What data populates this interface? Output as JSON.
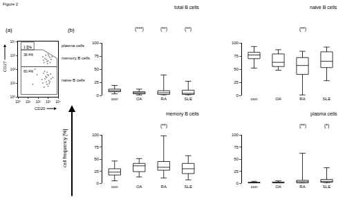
{
  "figure_title": "Figure 2",
  "chart_data": [
    {
      "type": "scatter",
      "panel": "(a)",
      "x_label": "CD20",
      "y_label": "CD27",
      "log": true,
      "grid": false,
      "xlim": [
        1,
        10000
      ],
      "ylim": [
        1,
        10000
      ],
      "xticks": [
        {
          "value": 1,
          "label": "10⁰"
        },
        {
          "value": 10,
          "label": "10¹"
        },
        {
          "value": 100,
          "label": "10²"
        },
        {
          "value": 1000,
          "label": "10³"
        },
        {
          "value": 10000,
          "label": "10⁴"
        }
      ],
      "yticks": [
        {
          "value": 1,
          "label": "10⁰"
        },
        {
          "value": 10,
          "label": "10¹"
        },
        {
          "value": 100,
          "label": "10²"
        },
        {
          "value": 1000,
          "label": "10³"
        },
        {
          "value": 10000,
          "label": "10⁴"
        }
      ],
      "color": "#8a8a8a",
      "marker": "circle",
      "x": [
        300,
        500,
        800,
        1200,
        600,
        400,
        900,
        1500,
        700,
        2000,
        1000,
        350,
        1100,
        250,
        1800,
        650,
        3000,
        450,
        1300,
        800,
        400,
        700,
        1000,
        300,
        1500,
        600,
        900,
        2000,
        500,
        1200,
        800,
        2500,
        350,
        1000,
        1600,
        10,
        20,
        8,
        30,
        50,
        80
      ],
      "y": [
        10,
        20,
        8,
        15,
        30,
        5,
        40,
        12,
        25,
        20,
        6,
        50,
        35,
        18,
        45,
        12,
        25,
        70,
        9,
        60,
        300,
        500,
        400,
        800,
        700,
        1000,
        250,
        500,
        600,
        900,
        350,
        800,
        450,
        1200,
        300,
        3000,
        3500,
        4500,
        8,
        100,
        40
      ],
      "gates": [
        {
          "name": "plasma cells",
          "percent": 1.2,
          "label": "1.2%",
          "x": [
            2,
            2,
            40,
            40,
            2
          ],
          "y": [
            2500,
            9000,
            9000,
            2500,
            2500
          ]
        },
        {
          "name": "memory B cells",
          "percent": 38.4,
          "label": "38.4%",
          "x": [
            2,
            2,
            300,
            8000,
            8000,
            2
          ],
          "y": [
            150,
            2500,
            2500,
            600,
            150,
            150
          ]
        },
        {
          "name": "naive B cells",
          "percent": 60.4,
          "label": "60.4%",
          "x": [
            2,
            2,
            8000,
            8000,
            2
          ],
          "y": [
            1.5,
            150,
            150,
            1.5,
            1.5
          ]
        }
      ]
    },
    {
      "type": "box",
      "panel": "(b)",
      "title": "total B cells",
      "y_label": "cell frequency [%]",
      "grid": false,
      "color": "#000000",
      "categories": [
        "con",
        "OA",
        "RA",
        "SLE"
      ],
      "min": [
        3,
        1,
        0,
        0
      ],
      "q1": [
        7,
        3,
        2,
        2
      ],
      "median": [
        9,
        5,
        5,
        4
      ],
      "q3": [
        12,
        7,
        9,
        10
      ],
      "max": [
        19,
        12,
        39,
        27
      ],
      "significance": [
        null,
        "(***)",
        "(**)",
        "(**)"
      ],
      "ylim": [
        0,
        100
      ],
      "yticks": [
        0,
        25,
        50,
        75,
        100
      ]
    },
    {
      "type": "box",
      "title": "naive B cells",
      "grid": false,
      "color": "#000000",
      "categories": [
        "con",
        "OA",
        "RA",
        "SLE"
      ],
      "min": [
        52,
        48,
        1,
        28
      ],
      "q1": [
        70,
        55,
        40,
        53
      ],
      "median": [
        77,
        63,
        57,
        65
      ],
      "q3": [
        82,
        79,
        72,
        83
      ],
      "max": [
        93,
        87,
        84,
        92
      ],
      "significance": [
        null,
        null,
        "(**)",
        null
      ],
      "ylim": [
        0,
        100
      ],
      "yticks": [
        0,
        25,
        50,
        75,
        100
      ]
    },
    {
      "type": "box",
      "title": "memory B cells",
      "grid": false,
      "color": "#000000",
      "categories": [
        "con",
        "OA",
        "RA",
        "SLE"
      ],
      "min": [
        5,
        13,
        11,
        7
      ],
      "q1": [
        17,
        24,
        27,
        20
      ],
      "median": [
        23,
        36,
        33,
        30
      ],
      "q3": [
        30,
        41,
        45,
        41
      ],
      "max": [
        46,
        51,
        98,
        57
      ],
      "significance": [
        null,
        null,
        "(**)",
        null
      ],
      "ylim": [
        0,
        100
      ],
      "yticks": [
        0,
        25,
        50,
        75,
        100
      ]
    },
    {
      "type": "box",
      "title": "plasma cells",
      "grid": false,
      "color": "#000000",
      "categories": [
        "con",
        "OA",
        "RA",
        "SLE"
      ],
      "min": [
        0,
        0,
        0,
        0
      ],
      "q1": [
        1,
        1,
        1,
        2
      ],
      "median": [
        1.5,
        1.5,
        3,
        4
      ],
      "q3": [
        2,
        2.5,
        6,
        8
      ],
      "max": [
        4,
        5,
        62,
        32
      ],
      "significance": [
        null,
        null,
        "(**)",
        "(*)"
      ],
      "ylim": [
        0,
        100
      ],
      "yticks": [
        0,
        25,
        50,
        75,
        100
      ]
    }
  ]
}
